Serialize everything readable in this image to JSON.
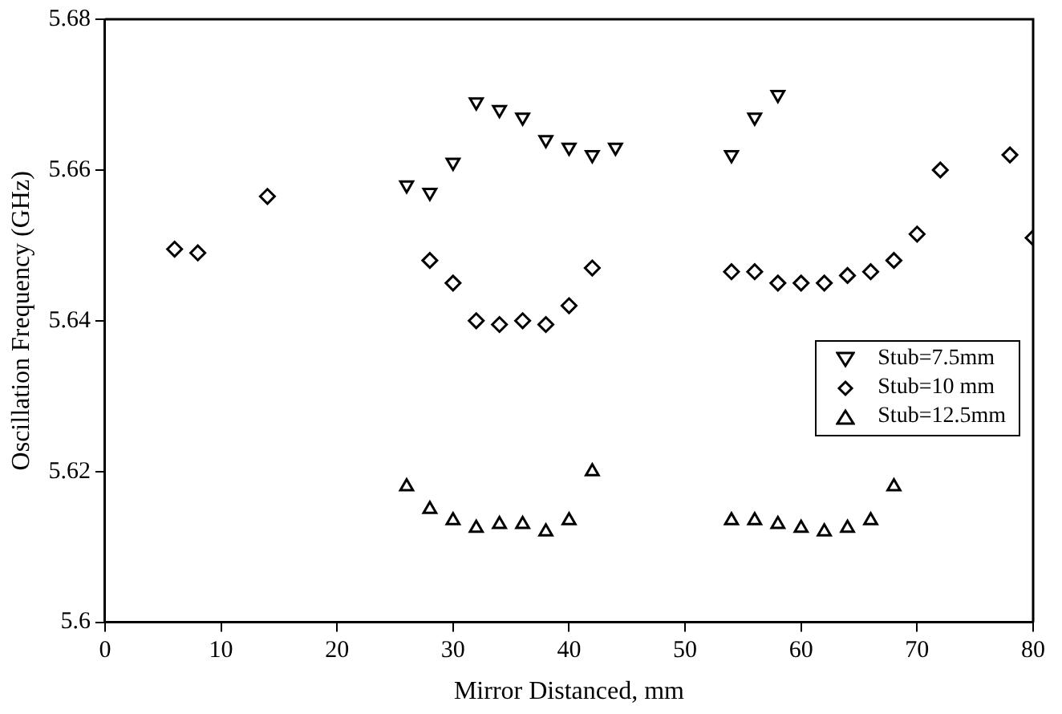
{
  "chart_data": {
    "type": "scatter",
    "xlabel": "Mirror Distanced, mm",
    "ylabel": "Oscillation Frequency (GHz)",
    "xlim": [
      0,
      80
    ],
    "xticks": [
      0,
      10,
      20,
      30,
      40,
      50,
      60,
      70,
      80
    ],
    "ylim": [
      5.6,
      5.68
    ],
    "yticks": [
      5.6,
      5.62,
      5.64,
      5.66,
      5.68
    ],
    "grid": false,
    "legend": "right",
    "series": [
      {
        "name": "Stub=7.5mm",
        "color": "#000000",
        "marker": "triangle-down",
        "x": [
          26,
          28,
          30,
          32,
          34,
          36,
          38,
          40,
          42,
          44,
          54,
          56,
          58
        ],
        "values": [
          5.658,
          5.657,
          5.661,
          5.669,
          5.668,
          5.667,
          5.664,
          5.663,
          5.662,
          5.663,
          5.662,
          5.667,
          5.67
        ]
      },
      {
        "name": "Stub=10 mm",
        "color": "#000000",
        "marker": "diamond",
        "x": [
          6,
          8,
          14,
          28,
          30,
          32,
          34,
          36,
          38,
          40,
          42,
          54,
          56,
          58,
          60,
          62,
          64,
          66,
          68,
          70,
          72,
          78,
          80
        ],
        "values": [
          5.6495,
          5.649,
          5.6565,
          5.648,
          5.645,
          5.64,
          5.6395,
          5.64,
          5.6395,
          5.642,
          5.647,
          5.6465,
          5.6465,
          5.645,
          5.645,
          5.645,
          5.646,
          5.6465,
          5.648,
          5.6515,
          5.66,
          5.662,
          5.651
        ]
      },
      {
        "name": "Stub=12.5mm",
        "color": "#000000",
        "marker": "triangle",
        "x": [
          26,
          28,
          30,
          32,
          34,
          36,
          38,
          40,
          42,
          54,
          56,
          58,
          60,
          62,
          64,
          66,
          68
        ],
        "values": [
          5.618,
          5.615,
          5.6135,
          5.6125,
          5.613,
          5.613,
          5.612,
          5.6135,
          5.62,
          5.6135,
          5.6135,
          5.613,
          5.6125,
          5.612,
          5.6125,
          5.6135,
          5.618
        ]
      }
    ]
  }
}
